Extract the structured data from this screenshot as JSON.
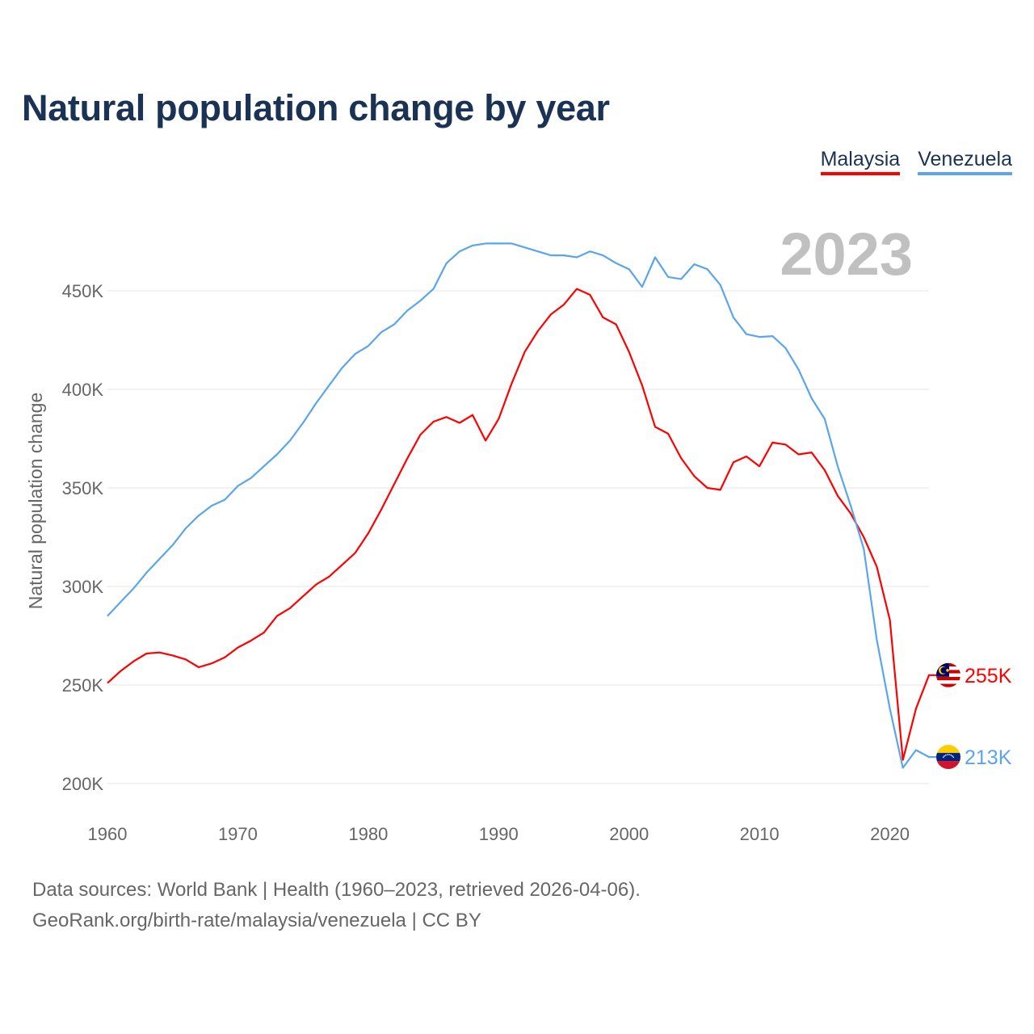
{
  "title": "Natural population change by year",
  "year_label": "2023",
  "footer": {
    "line1": "Data sources: World Bank | Health (1960–2023, retrieved 2026-04-06).",
    "line2": "GeoRank.org/birth-rate/malaysia/venezuela | CC BY"
  },
  "chart_data": {
    "type": "line",
    "title": "Natural population change by year",
    "xlabel": "",
    "ylabel": "Natural population change",
    "xlim": [
      1960,
      2023
    ],
    "ylim": [
      200000,
      450000
    ],
    "x_ticks": [
      1960,
      1970,
      1980,
      1990,
      2000,
      2010,
      2020
    ],
    "x_tick_labels": [
      "1960",
      "1970",
      "1980",
      "1990",
      "2000",
      "2010",
      "2020"
    ],
    "y_ticks": [
      200000,
      250000,
      300000,
      350000,
      400000,
      450000
    ],
    "y_tick_labels": [
      "200K",
      "250K",
      "300K",
      "350K",
      "400K",
      "450K"
    ],
    "grid": true,
    "legend": "top-right",
    "x_start": 1960,
    "series": [
      {
        "name": "Malaysia",
        "color": "#ff0000",
        "end_label": "255K",
        "flag": "malaysia-flag",
        "values": [
          251000,
          257000,
          262000,
          266000,
          266500,
          265000,
          263000,
          259000,
          261000,
          264000,
          269000,
          272500,
          276600,
          285000,
          289000,
          295000,
          301000,
          305000,
          311000,
          317000,
          327000,
          339000,
          352000,
          365000,
          377000,
          383600,
          386000,
          383000,
          387000,
          374000,
          385000,
          403000,
          419000,
          429500,
          438000,
          443000,
          451000,
          448000,
          436500,
          433000,
          419000,
          402000,
          381000,
          377500,
          365000,
          356000,
          350000,
          349000,
          363000,
          366000,
          361000,
          373000,
          372000,
          367000,
          368000,
          359000,
          346000,
          337000,
          325000,
          310000,
          283000,
          212000,
          238000,
          255000
        ]
      },
      {
        "name": "Venezuela",
        "color": "#5aa5eb",
        "end_label": "213K",
        "flag": "venezuela-flag",
        "values": [
          285000,
          292000,
          299000,
          307000,
          314000,
          321000,
          329500,
          336000,
          341000,
          344000,
          351000,
          355000,
          361000,
          367000,
          374000,
          383000,
          393000,
          402000,
          411000,
          418000,
          422000,
          429000,
          433000,
          440000,
          445000,
          451000,
          464000,
          470000,
          473000,
          474000,
          474000,
          474000,
          472000,
          470000,
          468000,
          468000,
          467000,
          470000,
          468000,
          464000,
          461000,
          452000,
          467000,
          457000,
          456000,
          463500,
          461000,
          453000,
          436500,
          428000,
          426600,
          427000,
          421000,
          410000,
          395500,
          385000,
          361000,
          341000,
          319000,
          273000,
          238000,
          208000,
          217000,
          213500
        ]
      }
    ]
  }
}
